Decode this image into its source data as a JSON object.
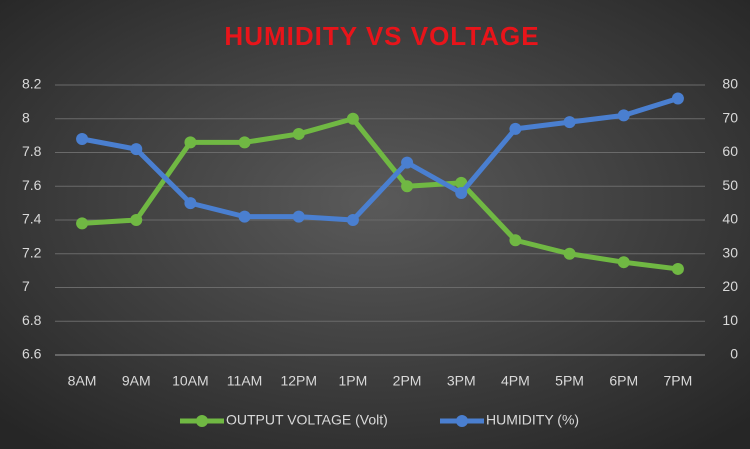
{
  "chart_data": {
    "type": "line",
    "title": "HUMIDITY VS VOLTAGE",
    "categories": [
      "8AM",
      "9AM",
      "10AM",
      "11AM",
      "12PM",
      "1PM",
      "2PM",
      "3PM",
      "4PM",
      "5PM",
      "6PM",
      "7PM"
    ],
    "series": [
      {
        "name": "OUTPUT VOLTAGE (Volt)",
        "color": "#70b843",
        "values": [
          7.38,
          7.4,
          7.86,
          7.86,
          7.91,
          8.0,
          7.6,
          7.62,
          7.28,
          7.2,
          7.15,
          7.11
        ]
      },
      {
        "name": "HUMIDITY (%)",
        "color": "#4a7fd0",
        "axis": "y2",
        "values": [
          64,
          61,
          45,
          41,
          41,
          40,
          57,
          48,
          67,
          69,
          71,
          76
        ]
      }
    ],
    "ylim": [
      6.6,
      8.2
    ],
    "yticks": [
      6.6,
      6.8,
      7,
      7.2,
      7.4,
      7.6,
      7.8,
      8,
      8.2
    ],
    "y2lim": [
      0,
      80
    ],
    "y2ticks": [
      0,
      10,
      20,
      30,
      40,
      50,
      60,
      70,
      80
    ],
    "grid": true,
    "legend": "bottom"
  }
}
